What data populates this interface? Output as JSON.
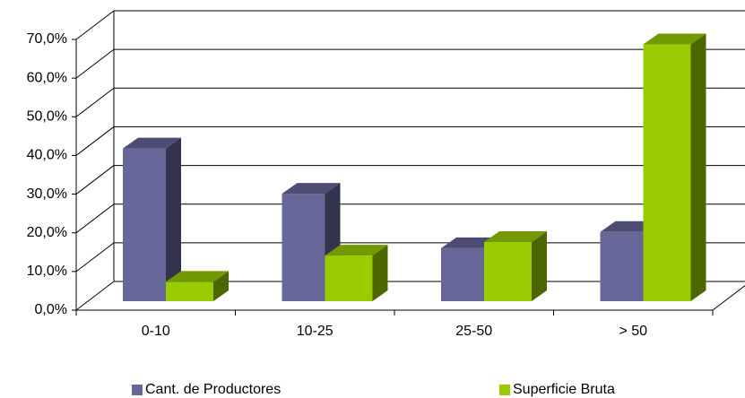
{
  "chart_data": {
    "type": "bar3d",
    "categories": [
      "0-10",
      "10-25",
      "25-50",
      "> 50"
    ],
    "series": [
      {
        "name": "Cant. de Productores",
        "color": "#666699",
        "values": [
          39.5,
          27.8,
          13.7,
          17.9
        ]
      },
      {
        "name": "Superficie Bruta",
        "color": "#99cc00",
        "values": [
          5,
          11.8,
          15.3,
          66.4
        ]
      }
    ],
    "ylim": [
      0,
      70
    ],
    "yticks": [
      {
        "value": 0,
        "label": "0,0%"
      },
      {
        "value": 10,
        "label": "10,0%"
      },
      {
        "value": 20,
        "label": "20,0%"
      },
      {
        "value": 30,
        "label": "30,0%"
      },
      {
        "value": 40,
        "label": "40,0%"
      },
      {
        "value": 50,
        "label": "50,0%"
      },
      {
        "value": 60,
        "label": "60,0%"
      },
      {
        "value": 70,
        "label": "70,0%"
      }
    ],
    "grid": true,
    "legend": "bottom"
  }
}
